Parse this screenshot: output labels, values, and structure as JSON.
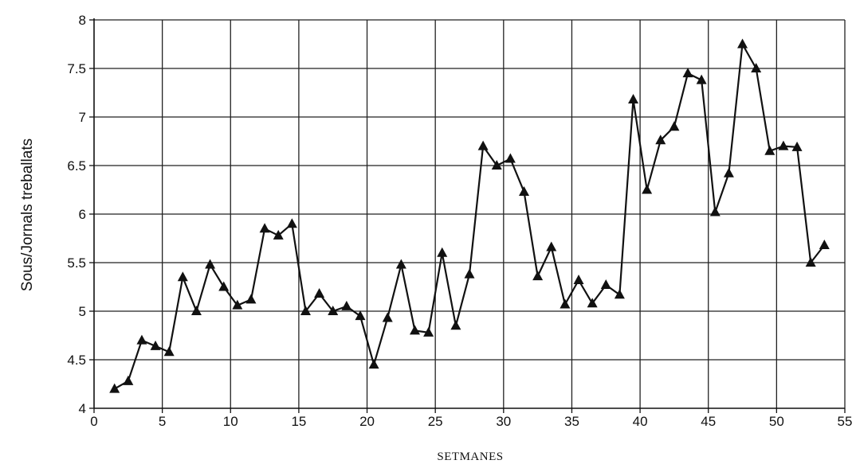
{
  "chart_data": {
    "type": "line",
    "title": "",
    "xlabel": "SETMANES",
    "ylabel": "Sous/Jornals  treballats",
    "xlim": [
      0,
      55
    ],
    "ylim": [
      4,
      8
    ],
    "x_ticks": [
      "0",
      "5",
      "10",
      "15",
      "20",
      "25",
      "30",
      "35",
      "40",
      "45",
      "50",
      "55"
    ],
    "y_ticks": [
      "4",
      "4.5",
      "5",
      "5.5",
      "6",
      "6.5",
      "7",
      "7.5",
      "8"
    ],
    "grid": true,
    "marker": "triangle",
    "series": [
      {
        "x": [
          1.5,
          2.5,
          3.5,
          4.5,
          5.5,
          6.5,
          7.5,
          8.5,
          9.5,
          10.5,
          11.5,
          12.5,
          13.5,
          14.5,
          15.5,
          16.5,
          17.5,
          18.5,
          19.5,
          20.5,
          21.5,
          22.5,
          23.5,
          24.5,
          25.5,
          26.5,
          27.5,
          28.5,
          29.5,
          30.5,
          31.5,
          32.5,
          33.5,
          34.5,
          35.5,
          36.5,
          37.5,
          38.5,
          39.5,
          40.5,
          41.5,
          42.5,
          43.5,
          44.5,
          45.5,
          46.5,
          47.5,
          48.5,
          49.5,
          50.5,
          51.5,
          52.5,
          53.5
        ],
        "y": [
          4.2,
          4.28,
          4.7,
          4.64,
          4.58,
          5.35,
          5,
          5.48,
          5.25,
          5.06,
          5.12,
          5.85,
          5.78,
          5.9,
          5,
          5.18,
          5,
          5.05,
          4.95,
          4.45,
          4.93,
          5.48,
          4.8,
          4.78,
          5.6,
          4.85,
          5.38,
          6.7,
          6.5,
          6.57,
          6.23,
          5.36,
          5.66,
          5.07,
          5.32,
          5.08,
          5.27,
          5.17,
          7.18,
          6.25,
          6.76,
          6.9,
          7.45,
          7.38,
          6.02,
          6.42,
          7.75,
          7.5,
          6.65,
          6.7,
          6.69,
          5.5,
          5.68
        ]
      }
    ]
  }
}
